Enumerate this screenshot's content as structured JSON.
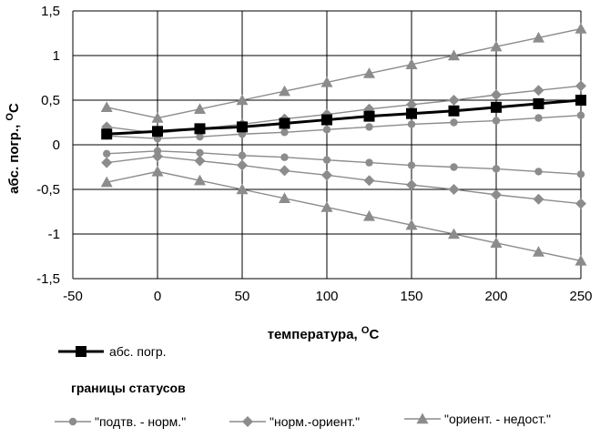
{
  "chart_data": {
    "type": "line",
    "xlabel": "температура, ",
    "xlabel_unit": "C",
    "xlabel_sup": "O",
    "ylabel": "абс. погр., ",
    "ylabel_unit": "C",
    "ylabel_sup": "O",
    "xlim": [
      -50,
      250
    ],
    "ylim": [
      -1.5,
      1.5
    ],
    "x_ticks": [
      "-50",
      "0",
      "50",
      "100",
      "150",
      "200",
      "250"
    ],
    "x_tick_values": [
      -50,
      0,
      50,
      100,
      150,
      200,
      250
    ],
    "y_ticks": [
      "1,5",
      "1",
      "0,5",
      "0",
      "-0,5",
      "-1",
      "-1,5"
    ],
    "y_tick_values": [
      1.5,
      1,
      0.5,
      0,
      -0.5,
      -1,
      -1.5
    ],
    "grid": true,
    "legend_group_title": "границы статусов",
    "x": [
      -30,
      0,
      25,
      50,
      75,
      100,
      125,
      150,
      175,
      200,
      225,
      250
    ],
    "series": [
      {
        "name": "абс. погр.",
        "marker": "square",
        "color": "#000000",
        "values": [
          0.12,
          0.15,
          0.18,
          0.2,
          0.24,
          0.28,
          0.32,
          0.35,
          0.38,
          0.42,
          0.46,
          0.5
        ]
      },
      {
        "name": "\"подтв. - норм.\"",
        "marker": "circle",
        "color": "#8c8c8c",
        "values": [
          0.1,
          0.07,
          0.09,
          0.12,
          0.14,
          0.17,
          0.2,
          0.23,
          0.25,
          0.27,
          0.3,
          0.33
        ]
      },
      {
        "name": "\"подтв. - норм.\"",
        "marker": "circle",
        "color": "#8c8c8c",
        "values": [
          -0.1,
          -0.07,
          -0.09,
          -0.12,
          -0.14,
          -0.17,
          -0.2,
          -0.23,
          -0.25,
          -0.27,
          -0.3,
          -0.33
        ]
      },
      {
        "name": "\"норм.-ориент.\"",
        "marker": "diamond",
        "color": "#8c8c8c",
        "values": [
          0.2,
          0.13,
          0.18,
          0.23,
          0.29,
          0.34,
          0.4,
          0.45,
          0.5,
          0.56,
          0.61,
          0.66
        ]
      },
      {
        "name": "\"норм.-ориент.\"",
        "marker": "diamond",
        "color": "#8c8c8c",
        "values": [
          -0.2,
          -0.13,
          -0.18,
          -0.23,
          -0.29,
          -0.34,
          -0.4,
          -0.45,
          -0.5,
          -0.56,
          -0.61,
          -0.66
        ]
      },
      {
        "name": "\"ориент. - недост.\"",
        "marker": "triangle",
        "color": "#8c8c8c",
        "values": [
          0.42,
          0.3,
          0.4,
          0.5,
          0.6,
          0.7,
          0.8,
          0.9,
          1.0,
          1.1,
          1.2,
          1.3
        ]
      },
      {
        "name": "\"ориент. - недост.\"",
        "marker": "triangle",
        "color": "#8c8c8c",
        "values": [
          -0.42,
          -0.3,
          -0.4,
          -0.5,
          -0.6,
          -0.7,
          -0.8,
          -0.9,
          -1.0,
          -1.1,
          -1.2,
          -1.3
        ]
      }
    ],
    "legend": [
      {
        "label": "абс. погр.",
        "marker": "square",
        "color": "#000000"
      },
      {
        "label": "\"подтв. - норм.\"",
        "marker": "circle",
        "color": "#8c8c8c"
      },
      {
        "label": "\"норм.-ориент.\"",
        "marker": "diamond",
        "color": "#8c8c8c"
      },
      {
        "label": "\"ориент. - недост.\"",
        "marker": "triangle",
        "color": "#8c8c8c"
      }
    ]
  }
}
